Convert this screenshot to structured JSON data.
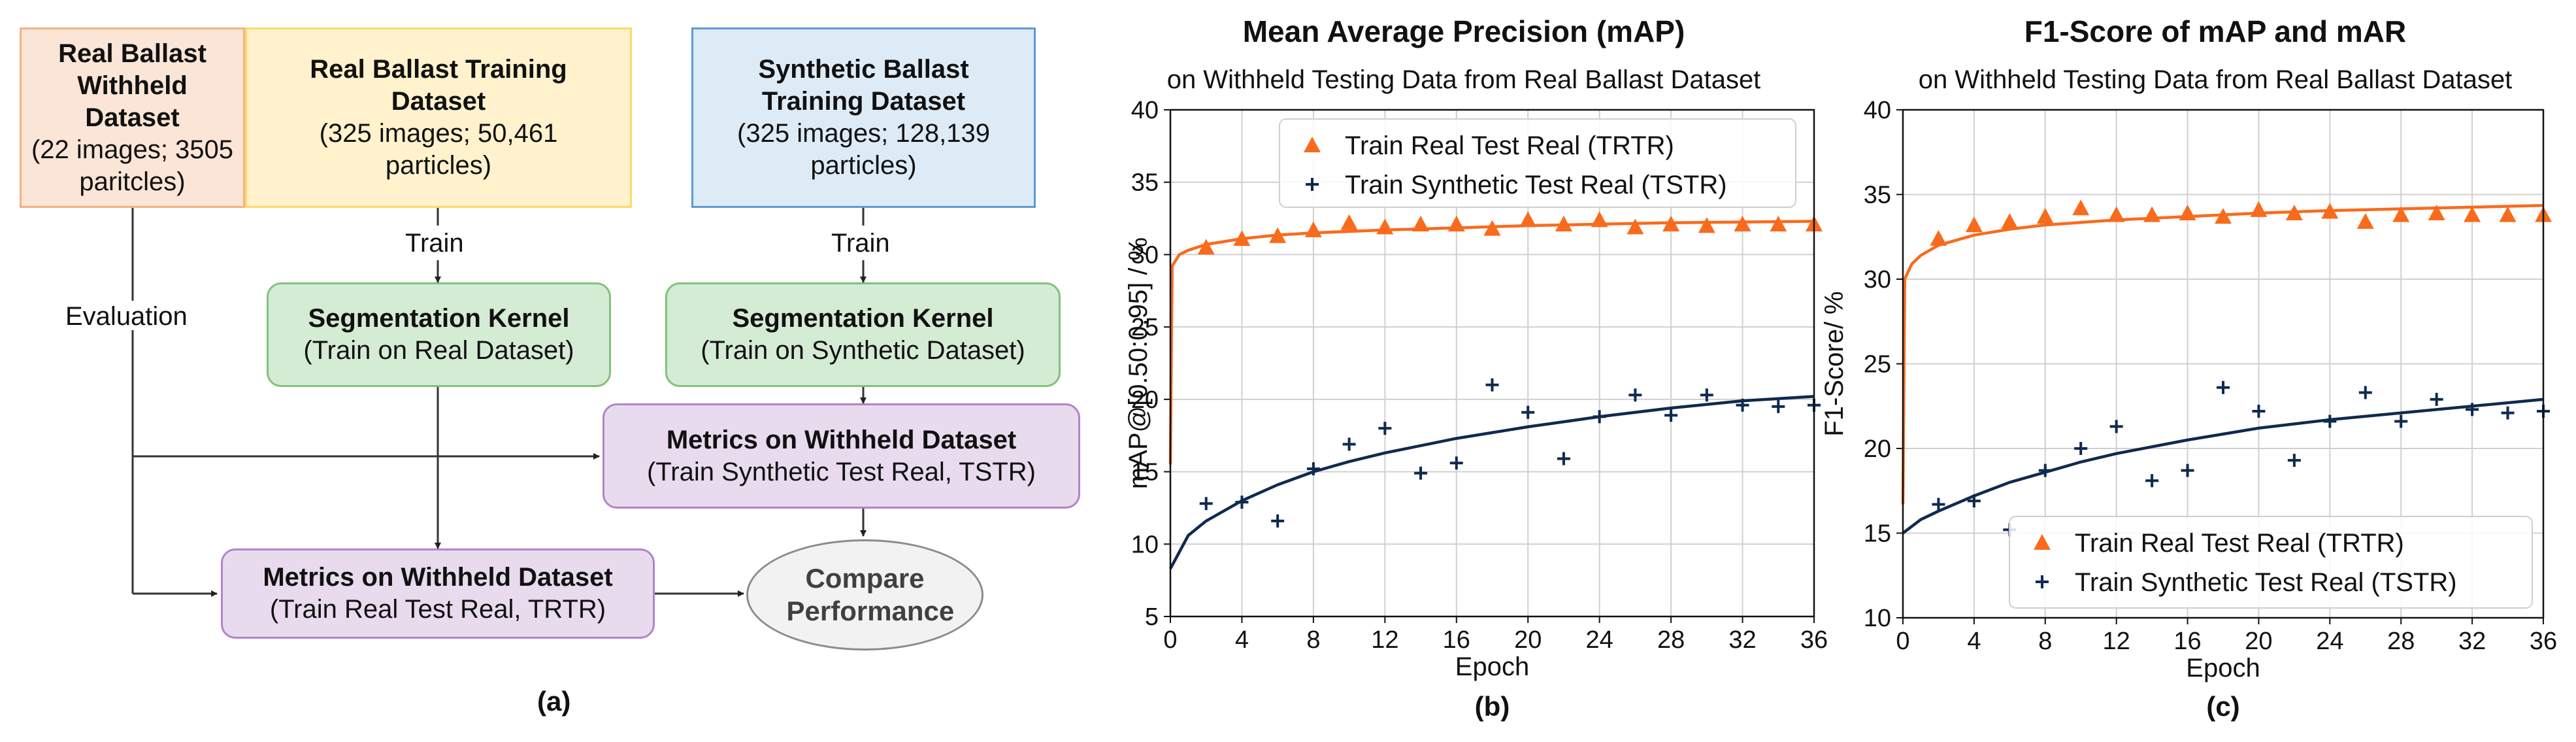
{
  "diagram": {
    "withheld_box": {
      "title": "Real Ballast Withheld Dataset",
      "detail": "(22 images; 3505 paritcles)"
    },
    "real_training_box": {
      "title": "Real Ballast Training Dataset",
      "detail": "(325 images; 50,461 particles)"
    },
    "synthetic_training_box": {
      "title": "Synthetic Ballast Training Dataset",
      "detail": "(325 images; 128,139 particles)"
    },
    "seg_real_box": {
      "title": "Segmentation Kernel",
      "detail": "(Train on Real Dataset)"
    },
    "seg_synth_box": {
      "title": "Segmentation Kernel",
      "detail": "(Train on Synthetic Dataset)"
    },
    "metrics_tstr_box": {
      "title": "Metrics on Withheld Dataset",
      "detail": "(Train Synthetic Test Real, TSTR)"
    },
    "metrics_trtr_box": {
      "title": "Metrics on Withheld Dataset",
      "detail": "(Train Real Test Real, TRTR)"
    },
    "compare_oval": {
      "title": "Compare Performance"
    },
    "label_train_left": "Train",
    "label_train_right": "Train",
    "label_evaluation": "Evaluation",
    "panel_label": "(a)"
  },
  "colors": {
    "trtr": "#f96b1c",
    "tstr": "#0f2a4f",
    "grid": "#d0d0d0"
  },
  "chart_data": [
    {
      "type": "scatter",
      "panel_label": "(b)",
      "title": "Mean Average Precision (mAP)",
      "subtitle": "on Withheld Testing Data from Real Ballast Dataset",
      "xlabel": "Epoch",
      "ylabel": "mAP@[0.50:0.95] / %",
      "xlim": [
        0,
        36
      ],
      "ylim": [
        5,
        40
      ],
      "xticks": [
        "0",
        "4",
        "8",
        "12",
        "16",
        "20",
        "24",
        "28",
        "32",
        "36"
      ],
      "yticks": [
        "5",
        "10",
        "15",
        "20",
        "25",
        "30",
        "35",
        "40"
      ],
      "grid": true,
      "legend_position": "top-right",
      "series": [
        {
          "name": "Train Real Test Real (TRTR)",
          "marker": "triangle",
          "x": [
            2,
            4,
            6,
            8,
            10,
            12,
            14,
            16,
            18,
            20,
            22,
            24,
            26,
            28,
            30,
            32,
            34,
            36
          ],
          "y": [
            30.5,
            31.1,
            31.3,
            31.7,
            32.2,
            31.9,
            32.1,
            32.1,
            31.8,
            32.4,
            32.1,
            32.4,
            31.9,
            32.1,
            32.0,
            32.1,
            32.1,
            32.1
          ],
          "fit": {
            "x": [
              0,
              0.1,
              0.5,
              1,
              2,
              4,
              6,
              8,
              12,
              16,
              20,
              24,
              28,
              32,
              36
            ],
            "y": [
              15.5,
              29.2,
              30.0,
              30.3,
              30.7,
              31.1,
              31.35,
              31.5,
              31.7,
              31.85,
              32.0,
              32.1,
              32.2,
              32.25,
              32.3
            ]
          }
        },
        {
          "name": "Train Synthetic Test Real (TSTR)",
          "marker": "plus",
          "x": [
            2,
            4,
            6,
            8,
            10,
            12,
            14,
            16,
            18,
            20,
            22,
            24,
            26,
            28,
            30,
            32,
            34,
            36
          ],
          "y": [
            12.8,
            12.9,
            11.6,
            15.2,
            16.9,
            18.0,
            14.9,
            15.6,
            21.0,
            19.1,
            15.9,
            18.8,
            20.3,
            18.9,
            20.3,
            19.6,
            19.5,
            19.6
          ],
          "fit": {
            "x": [
              0,
              1,
              2,
              4,
              6,
              8,
              10,
              12,
              16,
              20,
              24,
              28,
              32,
              36
            ],
            "y": [
              8.3,
              10.6,
              11.6,
              13.0,
              14.1,
              15.0,
              15.7,
              16.3,
              17.3,
              18.1,
              18.8,
              19.4,
              19.9,
              20.2
            ]
          }
        }
      ]
    },
    {
      "type": "scatter",
      "panel_label": "(c)",
      "title": "F1-Score of mAP and mAR",
      "subtitle": "on Withheld Testing Data from Real Ballast Dataset",
      "xlabel": "Epoch",
      "ylabel": "F1-Score/ %",
      "xlim": [
        0,
        36
      ],
      "ylim": [
        10,
        40
      ],
      "xticks": [
        "0",
        "4",
        "8",
        "12",
        "16",
        "20",
        "24",
        "28",
        "32",
        "36"
      ],
      "yticks": [
        "10",
        "15",
        "20",
        "25",
        "30",
        "35",
        "40"
      ],
      "grid": true,
      "legend_position": "bottom-right",
      "series": [
        {
          "name": "Train Real Test Real (TRTR)",
          "marker": "triangle",
          "x": [
            2,
            4,
            6,
            8,
            10,
            12,
            14,
            16,
            18,
            20,
            22,
            24,
            26,
            28,
            30,
            32,
            34,
            36
          ],
          "y": [
            32.4,
            33.2,
            33.4,
            33.7,
            34.2,
            33.8,
            33.8,
            33.9,
            33.7,
            34.1,
            33.9,
            34.0,
            33.4,
            33.8,
            33.9,
            33.8,
            33.8,
            33.8
          ],
          "fit": {
            "x": [
              0,
              0.1,
              0.5,
              1,
              2,
              4,
              6,
              8,
              12,
              16,
              20,
              24,
              28,
              32,
              36
            ],
            "y": [
              16.7,
              30.0,
              30.9,
              31.4,
              32.0,
              32.6,
              32.95,
              33.2,
              33.5,
              33.7,
              33.9,
              34.05,
              34.15,
              34.25,
              34.35
            ]
          }
        },
        {
          "name": "Train Synthetic Test Real (TSTR)",
          "marker": "plus",
          "x": [
            2,
            4,
            6,
            8,
            10,
            12,
            14,
            16,
            18,
            20,
            22,
            24,
            26,
            28,
            30,
            32,
            34,
            36
          ],
          "y": [
            16.7,
            16.9,
            15.2,
            18.7,
            20.0,
            21.3,
            18.1,
            18.7,
            23.6,
            22.2,
            19.3,
            21.6,
            23.3,
            21.6,
            22.9,
            22.3,
            22.1,
            22.2
          ],
          "fit": {
            "x": [
              0,
              1,
              2,
              4,
              6,
              8,
              10,
              12,
              16,
              20,
              24,
              28,
              32,
              36
            ],
            "y": [
              15.0,
              15.8,
              16.3,
              17.2,
              18.0,
              18.6,
              19.2,
              19.7,
              20.5,
              21.2,
              21.7,
              22.1,
              22.5,
              22.9
            ]
          }
        }
      ]
    }
  ]
}
